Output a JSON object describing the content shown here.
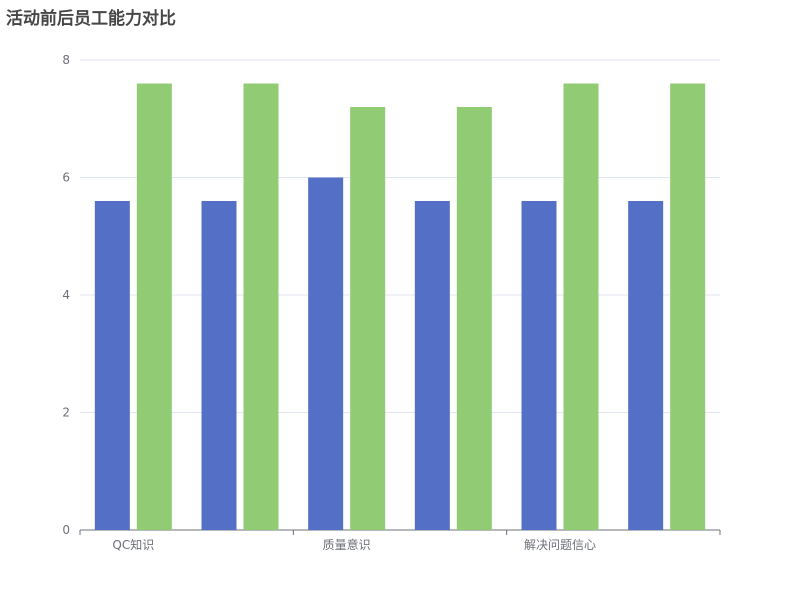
{
  "chart_data": {
    "type": "bar",
    "title": "活动前后员工能力对比",
    "xlabel": "",
    "ylabel": "",
    "categories": [
      "QC知识",
      "",
      "质量意识",
      "",
      "解决问题信心",
      ""
    ],
    "series": [
      {
        "values": [
          5.6,
          5.6,
          6.0,
          5.6,
          5.6,
          5.6
        ],
        "color": "#5470c6"
      },
      {
        "values": [
          7.6,
          7.6,
          7.2,
          7.2,
          7.6,
          7.6
        ],
        "color": "#91cc75"
      }
    ],
    "ylim": [
      0,
      8
    ],
    "yticks": [
      0,
      2,
      4,
      6,
      8
    ],
    "grid": true,
    "legend": "none"
  }
}
